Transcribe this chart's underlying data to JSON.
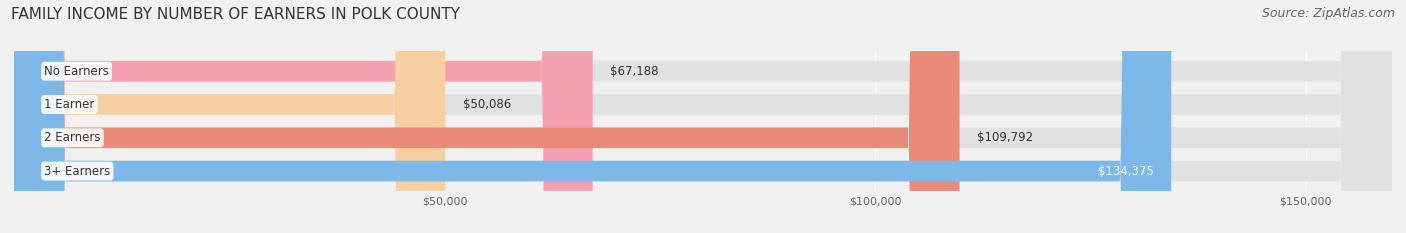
{
  "title": "FAMILY INCOME BY NUMBER OF EARNERS IN POLK COUNTY",
  "source": "Source: ZipAtlas.com",
  "categories": [
    "No Earners",
    "1 Earner",
    "2 Earners",
    "3+ Earners"
  ],
  "values": [
    67188,
    50086,
    109792,
    134375
  ],
  "bar_colors": [
    "#f4a0b0",
    "#f5cfa0",
    "#e8897a",
    "#7eb8e8"
  ],
  "label_colors": [
    "#333333",
    "#333333",
    "#333333",
    "#ffffff"
  ],
  "label_texts": [
    "$67,188",
    "$50,086",
    "$109,792",
    "$134,375"
  ],
  "xlim": [
    0,
    160000
  ],
  "xticks": [
    50000,
    100000,
    150000
  ],
  "xtick_labels": [
    "$50,000",
    "$100,000",
    "$150,000"
  ],
  "background_color": "#f0f0f0",
  "bar_background_color": "#e0e0e0",
  "title_fontsize": 11,
  "source_fontsize": 9,
  "bar_height": 0.62,
  "figsize": [
    14.06,
    2.33
  ],
  "dpi": 100
}
